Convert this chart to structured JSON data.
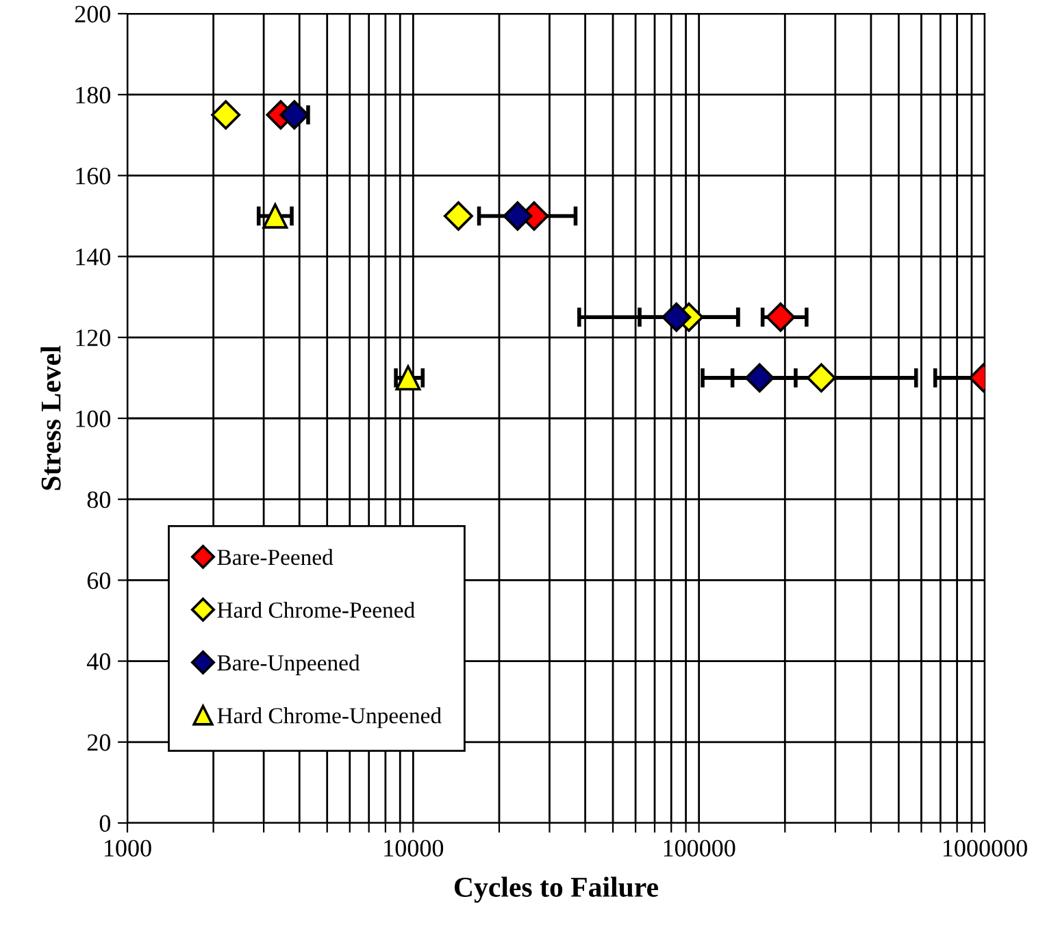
{
  "chart_data": {
    "type": "scatter",
    "xlabel": "Cycles to Failure",
    "ylabel": "Stress Level",
    "log": "x",
    "grid": true,
    "legend": "bottom left",
    "xlim": [
      1000,
      1000000
    ],
    "ylim": [
      0,
      200
    ],
    "yticks": [
      0,
      20,
      40,
      60,
      80,
      100,
      120,
      140,
      160,
      180,
      200
    ],
    "xticks": [
      1000,
      {
        "value": 2000,
        "label": null
      },
      {
        "value": 3000,
        "label": null
      },
      {
        "value": 4000,
        "label": null
      },
      {
        "value": 5000,
        "label": null
      },
      {
        "value": 6000,
        "label": null
      },
      {
        "value": 7000,
        "label": null
      },
      {
        "value": 8000,
        "label": null
      },
      {
        "value": 9000,
        "label": null
      },
      10000,
      {
        "value": 20000,
        "label": null
      },
      {
        "value": 30000,
        "label": null
      },
      {
        "value": 40000,
        "label": null
      },
      {
        "value": 50000,
        "label": null
      },
      {
        "value": 60000,
        "label": null
      },
      {
        "value": 70000,
        "label": null
      },
      {
        "value": 80000,
        "label": null
      },
      {
        "value": 90000,
        "label": null
      },
      100000,
      {
        "value": 200000,
        "label": null
      },
      {
        "value": 300000,
        "label": null
      },
      {
        "value": 400000,
        "label": null
      },
      {
        "value": 500000,
        "label": null
      },
      {
        "value": 600000,
        "label": null
      },
      {
        "value": 700000,
        "label": null
      },
      {
        "value": 800000,
        "label": null
      },
      {
        "value": 900000,
        "label": null
      },
      1000000
    ],
    "series": [
      {
        "name": "Bare-Peened",
        "color": "#ff0000",
        "marker": "diamond",
        "x": [
          3440,
          26500,
          193000,
          990000
        ],
        "values": [
          175,
          150,
          125,
          110
        ],
        "xerrors": [
          null,
          [
            17000,
            37000
          ],
          [
            167000,
            238000
          ],
          [
            671000,
            1000000
          ]
        ]
      },
      {
        "name": "Hard Chrome-Peened",
        "color": "#ffff00",
        "marker": "diamond",
        "x": [
          2210,
          14400,
          92200,
          268000
        ],
        "values": [
          175,
          150,
          125,
          110
        ],
        "xerrors": [
          null,
          null,
          [
            62000,
            137000
          ],
          [
            131000,
            575000
          ]
        ]
      },
      {
        "name": "Bare-Unpeened",
        "color": "#000080",
        "marker": "diamond",
        "x": [
          3840,
          23200,
          83400,
          163000
        ],
        "values": [
          175,
          150,
          125,
          110
        ],
        "xerrors": [
          [
            3500,
            4290
          ],
          null,
          [
            38100,
            137000
          ],
          [
            103000,
            218000
          ]
        ]
      },
      {
        "name": "Hard Chrome-Unpeened",
        "color": "#ffff00",
        "marker": "triangle",
        "x": [
          3290,
          9600
        ],
        "values": [
          150,
          110
        ],
        "xerrors": [
          [
            2880,
            3760
          ],
          [
            8700,
            10800
          ]
        ]
      }
    ]
  }
}
